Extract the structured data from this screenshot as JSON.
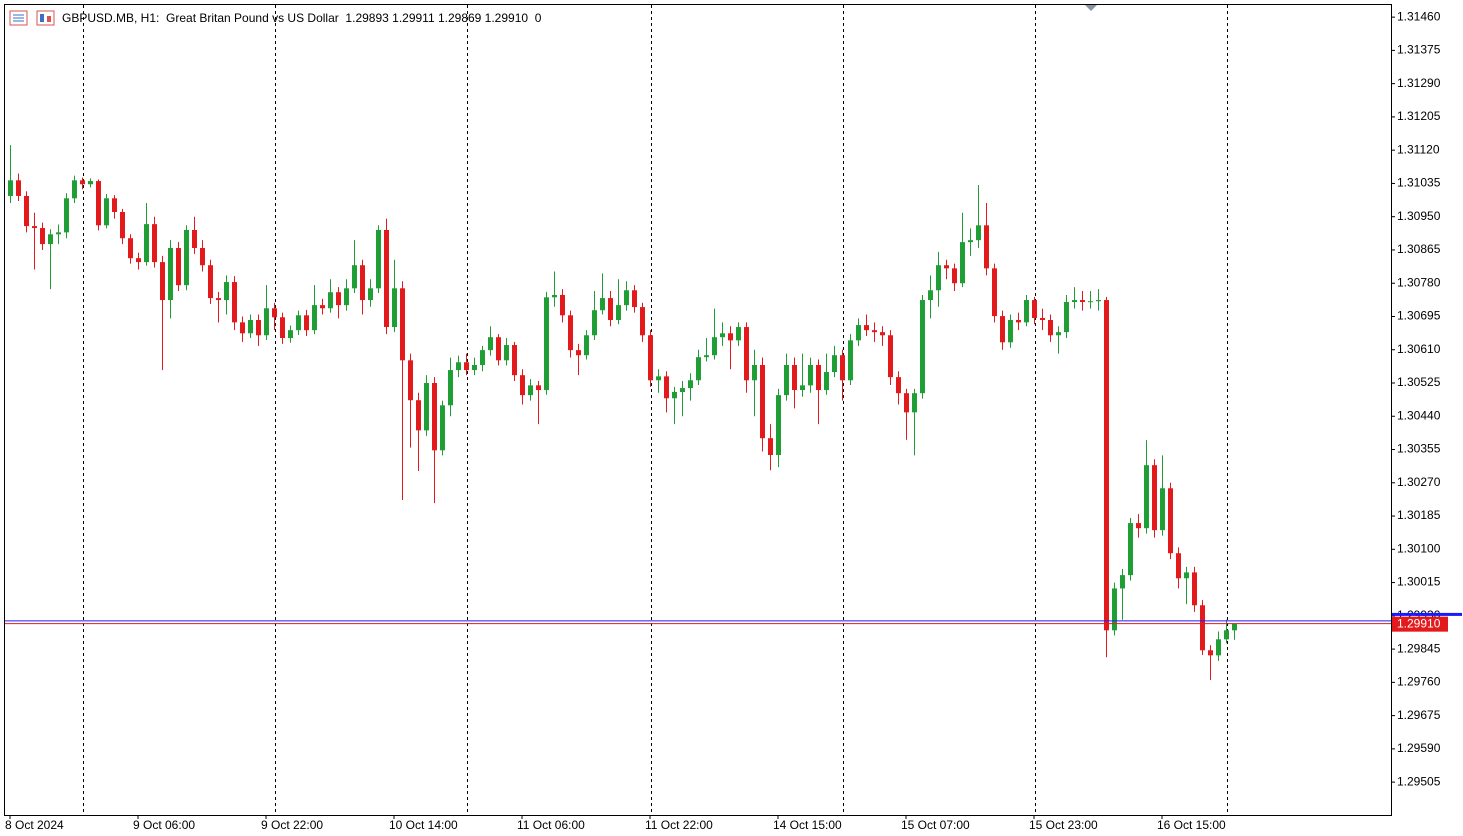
{
  "chart_data": {
    "type": "candlestick",
    "title": "GBPUSD.MB, H1:  Great Britan Pound vs US Dollar  1.29893 1.29911 1.29869 1.29910  0",
    "up_color": "#1e9e35",
    "down_color": "#e31a1c",
    "ylim": [
      1.29421,
      1.31491
    ],
    "yticks": [
      {
        "value": 1.3146,
        "label": "1.31460"
      },
      1.31375,
      {
        "value": 1.3129,
        "label": "1.31290"
      },
      1.31205,
      {
        "value": 1.3112,
        "label": "1.31120"
      },
      1.31035,
      {
        "value": 1.3095,
        "label": "1.30950"
      },
      1.30865,
      {
        "value": 1.3078,
        "label": "1.30780"
      },
      1.30695,
      {
        "value": 1.3061,
        "label": "1.30610"
      },
      1.30525,
      {
        "value": 1.3044,
        "label": "1.30440"
      },
      1.30355,
      {
        "value": 1.3027,
        "label": "1.30270"
      },
      1.30185,
      {
        "value": 1.301,
        "label": "1.30100"
      },
      1.30015,
      {
        "value": 1.2993,
        "label": "1.29930"
      },
      1.29845,
      {
        "value": 1.2976,
        "label": "1.29760"
      },
      1.29675,
      {
        "value": 1.2959,
        "label": "1.29590"
      },
      1.29505
    ],
    "current_price": {
      "value": 1.2991,
      "label": "1.29910",
      "color": "#e31a1c"
    },
    "ask": {
      "value": 1.29917,
      "color": "#1a1aff"
    },
    "categories": [
      "8 Oct 2024",
      null,
      null,
      null,
      null,
      null,
      null,
      null,
      null,
      null,
      null,
      null,
      null,
      null,
      null,
      null,
      "9 Oct 06:00",
      null,
      null,
      null,
      null,
      null,
      null,
      null,
      null,
      null,
      null,
      null,
      null,
      null,
      null,
      null,
      "9 Oct 22:00",
      null,
      null,
      null,
      null,
      null,
      null,
      null,
      null,
      null,
      null,
      null,
      null,
      null,
      null,
      null,
      "10 Oct 14:00",
      null,
      null,
      null,
      null,
      null,
      null,
      null,
      null,
      null,
      null,
      null,
      null,
      null,
      null,
      null,
      "11 Oct 06:00",
      null,
      null,
      null,
      null,
      null,
      null,
      null,
      null,
      null,
      null,
      null,
      null,
      null,
      null,
      null,
      "11 Oct 22:00",
      null,
      null,
      null,
      null,
      null,
      null,
      null,
      null,
      null,
      null,
      null,
      null,
      null,
      null,
      null,
      "14 Oct 15:00",
      null,
      null,
      null,
      null,
      null,
      null,
      null,
      null,
      null,
      null,
      null,
      null,
      null,
      null,
      null,
      "15 Oct 07:00",
      null,
      null,
      null,
      null,
      null,
      null,
      null,
      null,
      null,
      null,
      null,
      null,
      null,
      null,
      null,
      "15 Oct 23:00",
      null,
      null,
      null,
      null,
      null,
      null,
      null,
      null,
      null,
      null,
      null,
      null,
      null,
      null,
      null,
      "16 Oct 15:00",
      null,
      null,
      null,
      null,
      null,
      null,
      null,
      null,
      null
    ],
    "open": [
      1.31003,
      1.31043,
      1.31003,
      1.30926,
      1.30921,
      1.3088,
      1.30905,
      1.3091,
      1.30997,
      1.31043,
      1.31033,
      1.31041,
      1.30928,
      1.30997,
      1.30962,
      1.30895,
      1.30844,
      1.30834,
      1.30931,
      1.30834,
      1.30737,
      1.3087,
      1.30775,
      1.30916,
      1.3087,
      1.30826,
      1.30742,
      1.30737,
      1.30783,
      1.3068,
      1.30652,
      1.30686,
      1.30647,
      1.30716,
      1.30693,
      1.3064,
      1.3066,
      1.30698,
      1.3066,
      1.30724,
      1.30716,
      1.30757,
      1.30724,
      1.30767,
      1.30826,
      1.30737,
      1.30767,
      1.30916,
      1.30668,
      1.30767,
      1.30583,
      1.30481,
      1.30404,
      1.30525,
      1.30353,
      1.30468,
      1.30558,
      1.30578,
      1.30558,
      1.30571,
      1.30609,
      1.30642,
      1.30583,
      1.30622,
      1.30545,
      1.30494,
      1.30519,
      1.30507,
      1.30744,
      1.3075,
      1.30698,
      1.30609,
      1.30596,
      1.30647,
      1.30711,
      1.30742,
      1.30686,
      1.30724,
      1.30762,
      1.30719,
      1.30647,
      1.30532,
      1.30542,
      1.30486,
      1.30502,
      1.30512,
      1.30532,
      1.30591,
      1.30596,
      1.30642,
      1.30652,
      1.30634,
      1.30668,
      1.30532,
      1.30571,
      1.30384,
      1.30341,
      1.30494,
      1.30571,
      1.30507,
      1.30519,
      1.30571,
      1.30507,
      1.30553,
      1.30596,
      1.30532,
      1.30634,
      1.30673,
      1.3066,
      1.30655,
      1.30647,
      1.3054,
      1.30499,
      1.3045,
      1.30499,
      1.30737,
      1.30762,
      1.30826,
      1.30818,
      1.3078,
      1.30885,
      1.3089,
      1.30928,
      1.30818,
      1.30696,
      1.30629,
      1.30686,
      1.3068,
      1.30737,
      1.30691,
      1.30686,
      1.30647,
      1.30655,
      1.30732,
      1.30737,
      1.30732,
      1.30734,
      1.30737,
      1.29893,
      1.3,
      1.30034,
      1.30167,
      1.30154,
      1.30315,
      1.30149,
      1.30256,
      1.3009,
      1.30026,
      1.30041,
      1.29957,
      1.29842,
      1.29829,
      1.2987,
      1.29893
    ],
    "high": [
      1.31133,
      1.3106,
      1.31015,
      1.3096,
      1.30935,
      1.30918,
      1.3093,
      1.3101,
      1.31055,
      1.3105,
      1.31048,
      1.31045,
      1.31008,
      1.31005,
      1.3097,
      1.30905,
      1.30858,
      1.30985,
      1.3095,
      1.3085,
      1.3089,
      1.30885,
      1.30928,
      1.3095,
      1.3089,
      1.3084,
      1.30758,
      1.308,
      1.30798,
      1.30695,
      1.307,
      1.307,
      1.30775,
      1.3073,
      1.30705,
      1.30672,
      1.3071,
      1.30712,
      1.30775,
      1.3074,
      1.3079,
      1.3077,
      1.3079,
      1.3089,
      1.3084,
      1.3079,
      1.30928,
      1.30945,
      1.3084,
      1.30785,
      1.306,
      1.305,
      1.30545,
      1.3054,
      1.3048,
      1.3059,
      1.30595,
      1.306,
      1.3059,
      1.3062,
      1.3067,
      1.3065,
      1.3064,
      1.3063,
      1.3056,
      1.30535,
      1.3053,
      1.30758,
      1.3081,
      1.30765,
      1.3071,
      1.30625,
      1.3066,
      1.3076,
      1.30805,
      1.3076,
      1.3079,
      1.30785,
      1.30775,
      1.3073,
      1.3066,
      1.3056,
      1.30555,
      1.30515,
      1.3053,
      1.3055,
      1.3061,
      1.3064,
      1.30715,
      1.3068,
      1.3067,
      1.3068,
      1.3068,
      1.3061,
      1.3059,
      1.3042,
      1.3051,
      1.306,
      1.3059,
      1.306,
      1.3059,
      1.30585,
      1.306,
      1.3062,
      1.3061,
      1.3065,
      1.3069,
      1.307,
      1.3068,
      1.3067,
      1.3066,
      1.30555,
      1.3051,
      1.3051,
      1.3075,
      1.308,
      1.3086,
      1.3084,
      1.3083,
      1.3096,
      1.3092,
      1.31031,
      1.30985,
      1.3083,
      1.3071,
      1.307,
      1.30705,
      1.3075,
      1.30745,
      1.30715,
      1.307,
      1.3067,
      1.3075,
      1.3077,
      1.3076,
      1.3076,
      1.30765,
      1.30745,
      1.30015,
      1.3005,
      1.3018,
      1.3019,
      1.30379,
      1.3033,
      1.3034,
      1.3027,
      1.30105,
      1.30055,
      1.30055,
      1.2997,
      1.29855,
      1.2989,
      1.2992,
      1.29911
    ],
    "low": [
      1.30985,
      1.3099,
      1.3091,
      1.30815,
      1.30865,
      1.30765,
      1.3088,
      1.30895,
      1.30985,
      1.3102,
      1.31025,
      1.30915,
      1.3092,
      1.30945,
      1.3088,
      1.3083,
      1.30815,
      1.30825,
      1.3082,
      1.30558,
      1.3069,
      1.3076,
      1.30762,
      1.30855,
      1.3081,
      1.30727,
      1.3068,
      1.307,
      1.3066,
      1.3063,
      1.3064,
      1.3062,
      1.30635,
      1.3066,
      1.30625,
      1.30628,
      1.30648,
      1.30645,
      1.3065,
      1.307,
      1.30705,
      1.3069,
      1.3071,
      1.30755,
      1.307,
      1.3072,
      1.30755,
      1.3065,
      1.30655,
      1.30226,
      1.3036,
      1.303,
      1.3039,
      1.30218,
      1.3034,
      1.3044,
      1.3054,
      1.30545,
      1.30545,
      1.30555,
      1.30595,
      1.3057,
      1.3057,
      1.3053,
      1.3047,
      1.3048,
      1.3042,
      1.30495,
      1.3072,
      1.3068,
      1.3059,
      1.30545,
      1.30585,
      1.30635,
      1.307,
      1.3067,
      1.30675,
      1.3071,
      1.30705,
      1.3063,
      1.30515,
      1.305,
      1.3045,
      1.3042,
      1.3044,
      1.3048,
      1.3052,
      1.3058,
      1.30585,
      1.3062,
      1.3056,
      1.3062,
      1.305,
      1.3044,
      1.3035,
      1.30302,
      1.3031,
      1.3048,
      1.3046,
      1.3049,
      1.305,
      1.3042,
      1.30495,
      1.3054,
      1.3048,
      1.3052,
      1.3062,
      1.30645,
      1.3063,
      1.3062,
      1.3052,
      1.3047,
      1.3038,
      1.3034,
      1.30485,
      1.3069,
      1.3072,
      1.3079,
      1.3076,
      1.3077,
      1.3085,
      1.3087,
      1.308,
      1.3068,
      1.3061,
      1.30615,
      1.3066,
      1.3067,
      1.30675,
      1.3066,
      1.3063,
      1.306,
      1.3064,
      1.30715,
      1.3071,
      1.30715,
      1.3071,
      1.29824,
      1.2988,
      1.2992,
      1.3002,
      1.3013,
      1.3014,
      1.3013,
      1.30135,
      1.30075,
      1.3,
      1.2996,
      1.2994,
      1.2983,
      1.29766,
      1.29815,
      1.2986,
      1.29869
    ],
    "close": [
      1.31043,
      1.31003,
      1.30926,
      1.30921,
      1.3088,
      1.30905,
      1.3091,
      1.30997,
      1.31043,
      1.31033,
      1.31041,
      1.30928,
      1.30997,
      1.30962,
      1.30895,
      1.30844,
      1.30834,
      1.30931,
      1.30834,
      1.30737,
      1.3087,
      1.30775,
      1.30916,
      1.3087,
      1.30826,
      1.30742,
      1.30737,
      1.30783,
      1.3068,
      1.30652,
      1.30686,
      1.30647,
      1.30716,
      1.30693,
      1.3064,
      1.3066,
      1.30698,
      1.3066,
      1.30724,
      1.30716,
      1.30757,
      1.30724,
      1.30767,
      1.30826,
      1.30737,
      1.30767,
      1.30916,
      1.30668,
      1.30767,
      1.30583,
      1.30481,
      1.30404,
      1.30525,
      1.30353,
      1.30468,
      1.30558,
      1.30578,
      1.30558,
      1.30571,
      1.30609,
      1.30642,
      1.30583,
      1.30622,
      1.30545,
      1.30494,
      1.30519,
      1.30507,
      1.30744,
      1.3075,
      1.30698,
      1.30609,
      1.30596,
      1.30647,
      1.30711,
      1.30742,
      1.30686,
      1.30724,
      1.30762,
      1.30719,
      1.30647,
      1.30532,
      1.30542,
      1.30486,
      1.30502,
      1.30512,
      1.30532,
      1.30591,
      1.30596,
      1.30642,
      1.30652,
      1.30634,
      1.30668,
      1.30532,
      1.30571,
      1.30384,
      1.30341,
      1.30494,
      1.30571,
      1.30507,
      1.30519,
      1.30571,
      1.30507,
      1.30553,
      1.30596,
      1.30532,
      1.30634,
      1.30673,
      1.3066,
      1.30655,
      1.30647,
      1.3054,
      1.30499,
      1.3045,
      1.30499,
      1.30737,
      1.30762,
      1.30826,
      1.30818,
      1.3078,
      1.30885,
      1.3089,
      1.30928,
      1.30818,
      1.30696,
      1.30629,
      1.30686,
      1.3068,
      1.30737,
      1.30691,
      1.30686,
      1.30647,
      1.30655,
      1.30732,
      1.30737,
      1.30732,
      1.30734,
      1.30737,
      1.29893,
      1.3,
      1.30034,
      1.30167,
      1.30154,
      1.30315,
      1.30149,
      1.30256,
      1.3009,
      1.30026,
      1.30041,
      1.29957,
      1.29842,
      1.29829,
      1.2987,
      1.29893,
      1.2991
    ]
  }
}
